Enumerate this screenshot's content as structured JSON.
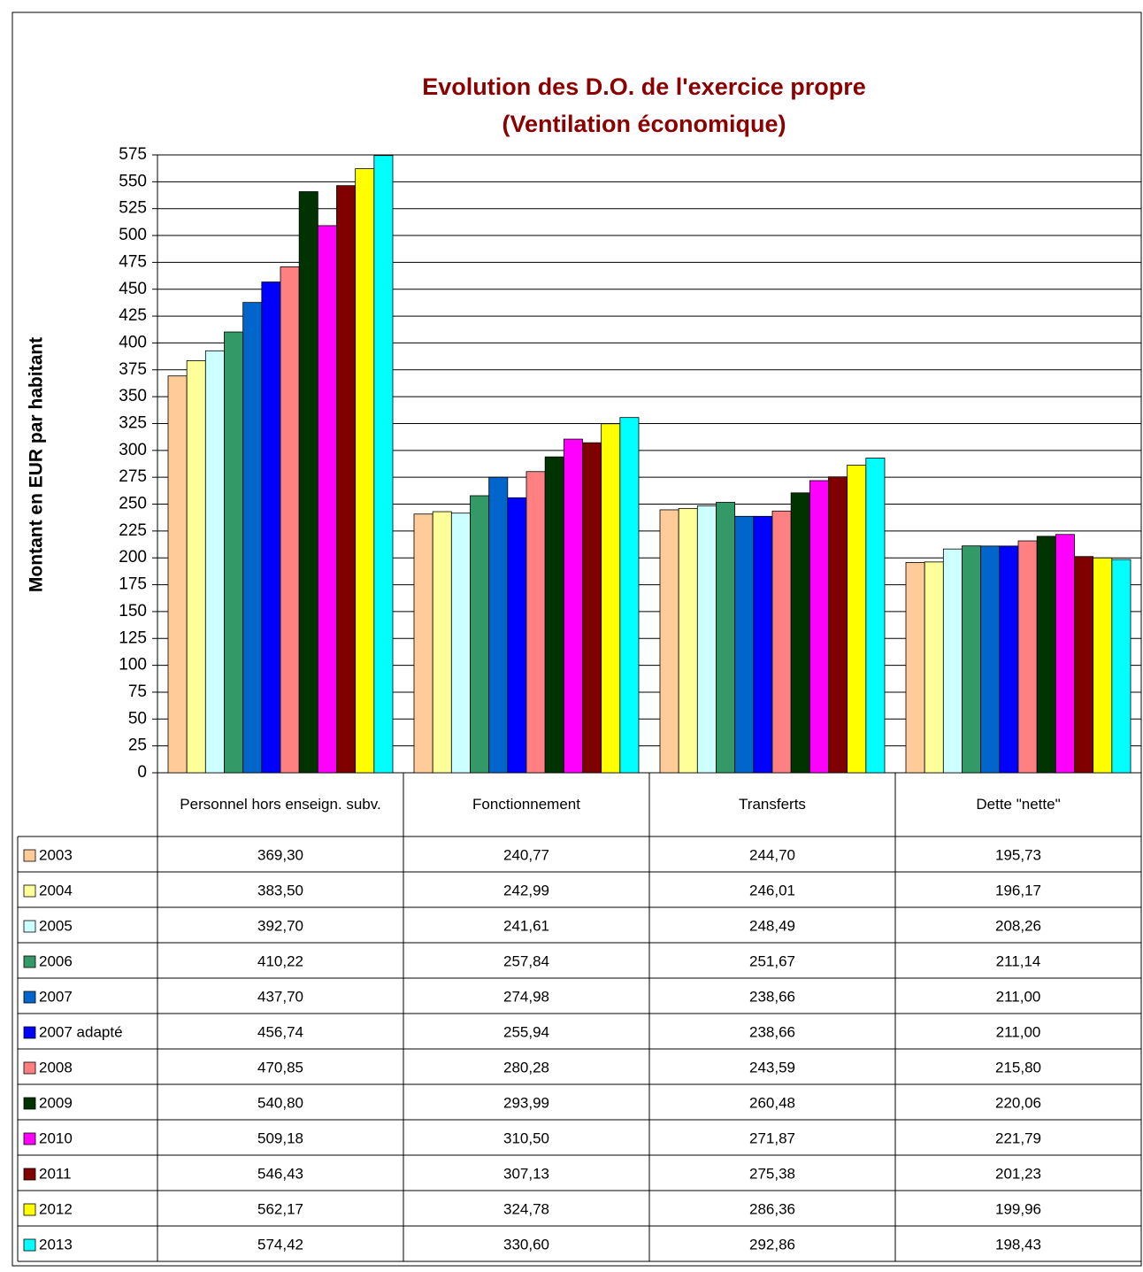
{
  "chart_data": {
    "type": "bar",
    "title": "Evolution des D.O. de l'exercice propre",
    "subtitle": "(Ventilation économique)",
    "y_label": "Montant en EUR par habitant",
    "categories": [
      "Personnel hors enseign. subv.",
      "Fonctionnement",
      "Transferts",
      "Dette \"nette\""
    ],
    "series": [
      {
        "name": "2003",
        "color": "#FFCC99",
        "values": [
          369.3,
          240.77,
          244.7,
          195.73
        ],
        "value_labels": [
          "369,30",
          "240,77",
          "244,70",
          "195,73"
        ]
      },
      {
        "name": "2004",
        "color": "#FFFF99",
        "values": [
          383.5,
          242.99,
          246.01,
          196.17
        ],
        "value_labels": [
          "383,50",
          "242,99",
          "246,01",
          "196,17"
        ]
      },
      {
        "name": "2005",
        "color": "#CCFFFF",
        "values": [
          392.7,
          241.61,
          248.49,
          208.26
        ],
        "value_labels": [
          "392,70",
          "241,61",
          "248,49",
          "208,26"
        ]
      },
      {
        "name": "2006",
        "color": "#339966",
        "values": [
          410.22,
          257.84,
          251.67,
          211.14
        ],
        "value_labels": [
          "410,22",
          "257,84",
          "251,67",
          "211,14"
        ]
      },
      {
        "name": "2007",
        "color": "#0066CC",
        "values": [
          437.7,
          274.98,
          238.66,
          211.0
        ],
        "value_labels": [
          "437,70",
          "274,98",
          "238,66",
          "211,00"
        ]
      },
      {
        "name": "2007 adapté",
        "color": "#0000FF",
        "values": [
          456.74,
          255.94,
          238.66,
          211.0
        ],
        "value_labels": [
          "456,74",
          "255,94",
          "238,66",
          "211,00"
        ]
      },
      {
        "name": "2008",
        "color": "#FF8080",
        "values": [
          470.85,
          280.28,
          243.59,
          215.8
        ],
        "value_labels": [
          "470,85",
          "280,28",
          "243,59",
          "215,80"
        ]
      },
      {
        "name": "2009",
        "color": "#003300",
        "values": [
          540.8,
          293.99,
          260.48,
          220.06
        ],
        "value_labels": [
          "540,80",
          "293,99",
          "260,48",
          "220,06"
        ]
      },
      {
        "name": "2010",
        "color": "#FF00FF",
        "values": [
          509.18,
          310.5,
          271.87,
          221.79
        ],
        "value_labels": [
          "509,18",
          "310,50",
          "271,87",
          "221,79"
        ]
      },
      {
        "name": "2011",
        "color": "#800000",
        "values": [
          546.43,
          307.13,
          275.38,
          201.23
        ],
        "value_labels": [
          "546,43",
          "307,13",
          "275,38",
          "201,23"
        ]
      },
      {
        "name": "2012",
        "color": "#FFFF00",
        "values": [
          562.17,
          324.78,
          286.36,
          199.96
        ],
        "value_labels": [
          "562,17",
          "324,78",
          "286,36",
          "199,96"
        ]
      },
      {
        "name": "2013",
        "color": "#00FFFF",
        "values": [
          574.42,
          330.6,
          292.86,
          198.43
        ],
        "value_labels": [
          "574,42",
          "330,60",
          "292,86",
          "198,43"
        ]
      }
    ],
    "ylim": [
      0,
      575
    ],
    "yticks": [
      0,
      25,
      50,
      75,
      100,
      125,
      150,
      175,
      200,
      225,
      250,
      275,
      300,
      325,
      350,
      375,
      400,
      425,
      450,
      475,
      500,
      525,
      550,
      575
    ],
    "grid": true
  }
}
